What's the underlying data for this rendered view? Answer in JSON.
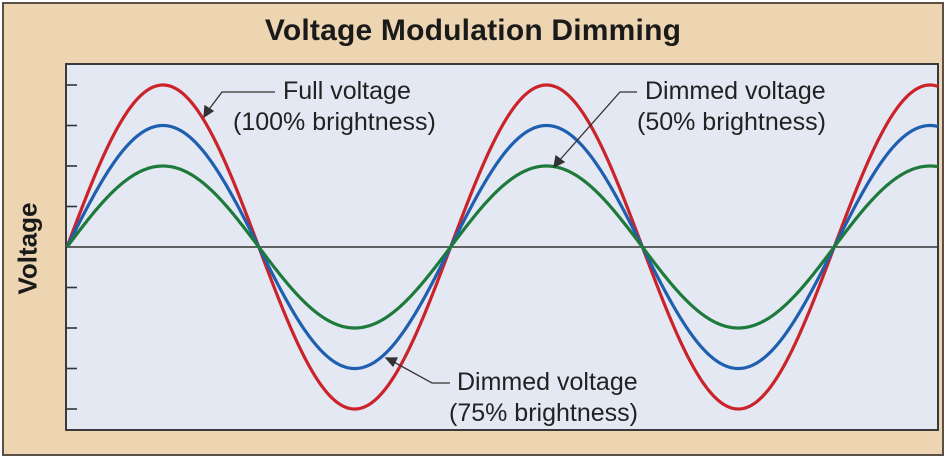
{
  "chart_data": {
    "type": "line",
    "title": "Voltage Modulation Dimming",
    "xlabel": "",
    "ylabel": "Voltage",
    "grid": false,
    "legend": "annotations",
    "x_units": "phase (half-cycles)",
    "x": [
      0,
      0.5,
      1,
      1.5,
      2,
      2.5,
      3,
      3.5,
      4,
      4.5
    ],
    "y_ticks": [
      -4,
      -3,
      -2,
      -1,
      1,
      2,
      3,
      4
    ],
    "ylim": [
      -4.5,
      4.5
    ],
    "series": [
      {
        "name": "Full voltage (100% brightness)",
        "color": "#cc2229",
        "amplitude": 4,
        "values": [
          0,
          4,
          0,
          -4,
          0,
          4,
          0,
          -4,
          0,
          4
        ]
      },
      {
        "name": "Dimmed voltage (75% brightness)",
        "color": "#1f5fb0",
        "amplitude": 3,
        "values": [
          0,
          3,
          0,
          -3,
          0,
          3,
          0,
          -3,
          0,
          3
        ]
      },
      {
        "name": "Dimmed voltage (50% brightness)",
        "color": "#1d7a3a",
        "amplitude": 2,
        "values": [
          0,
          2,
          0,
          -2,
          0,
          2,
          0,
          -2,
          0,
          2
        ]
      }
    ]
  },
  "title": "Voltage Modulation Dimming",
  "ylabel": "Voltage",
  "annotations": {
    "full": {
      "line1": "Full voltage",
      "line2": "(100% brightness)"
    },
    "dim50": {
      "line1": "Dimmed voltage",
      "line2": "(50% brightness)"
    },
    "dim75": {
      "line1": "Dimmed voltage",
      "line2": "(75% brightness)"
    }
  },
  "colors": {
    "frame_bg": "#ecd5b0",
    "plot_bg": "#e3e8f3",
    "border": "#3a3a3a",
    "red": "#cc2229",
    "blue": "#1f5fb0",
    "green": "#1d7a3a"
  }
}
